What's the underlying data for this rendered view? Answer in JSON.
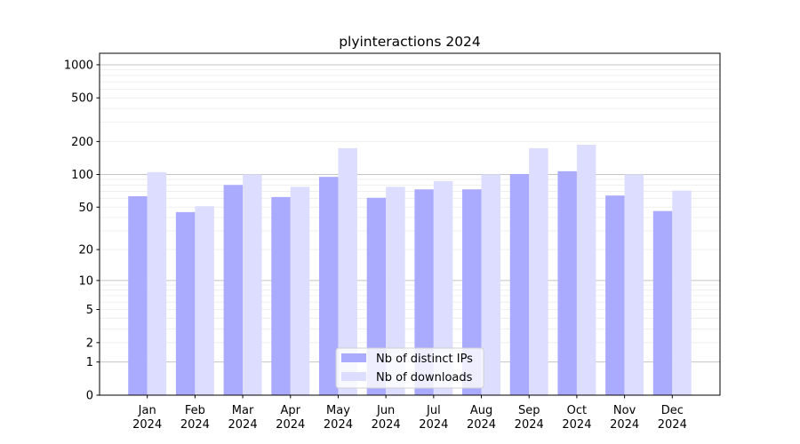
{
  "chart_data": {
    "type": "bar",
    "title": "plyinteractions 2024",
    "xlabel": "",
    "ylabel": "",
    "y_scale": "log10(1+y)",
    "ylim": [
      0,
      1272
    ],
    "y_ticks": [
      0,
      1,
      2,
      5,
      10,
      20,
      50,
      100,
      200,
      500,
      1000
    ],
    "grid": true,
    "legend_position": "lower center",
    "categories": [
      "Jan\n2024",
      "Feb\n2024",
      "Mar\n2024",
      "Apr\n2024",
      "May\n2024",
      "Jun\n2024",
      "Jul\n2024",
      "Aug\n2024",
      "Sep\n2024",
      "Oct\n2024",
      "Nov\n2024",
      "Dec\n2024"
    ],
    "series": [
      {
        "name": "Nb of distinct IPs",
        "color": "#aaaaff",
        "values": [
          63,
          45,
          80,
          62,
          95,
          61,
          73,
          73,
          101,
          107,
          64,
          46
        ]
      },
      {
        "name": "Nb of downloads",
        "color": "#ddddff",
        "values": [
          105,
          51,
          100,
          77,
          174,
          77,
          87,
          100,
          174,
          187,
          100,
          71
        ]
      }
    ]
  }
}
